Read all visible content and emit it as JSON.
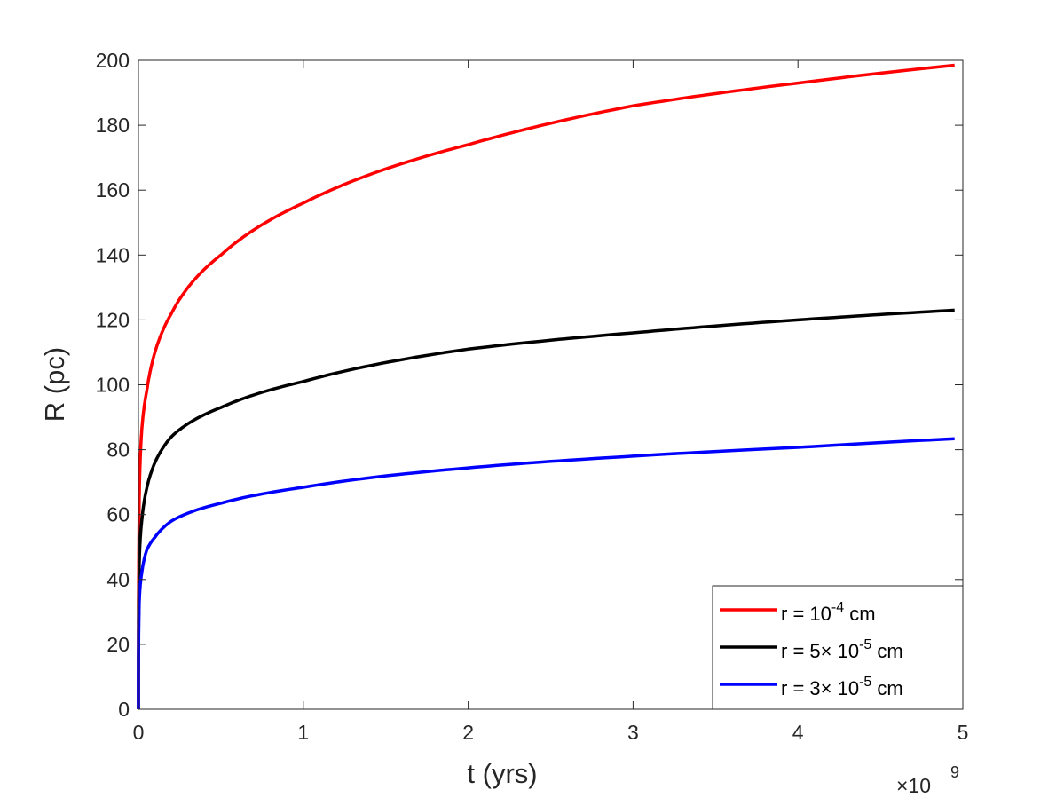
{
  "chart_data": {
    "type": "line",
    "title": "",
    "xlabel": "t (yrs)",
    "ylabel": "R (pc)",
    "x_multiplier": "×10^9",
    "xlim": [
      0,
      5
    ],
    "ylim": [
      0,
      200
    ],
    "xticks": [
      0,
      1,
      2,
      3,
      4,
      5
    ],
    "yticks": [
      0,
      20,
      40,
      60,
      80,
      100,
      120,
      140,
      160,
      180,
      200
    ],
    "grid": false,
    "legend_position": "lower right",
    "series": [
      {
        "name": "r = 10^-4 cm",
        "color": "#ff0000",
        "x": [
          0,
          0.005,
          0.02,
          0.05,
          0.1,
          0.2,
          0.5,
          1,
          2,
          3,
          4,
          4.95
        ],
        "y": [
          0,
          65,
          86,
          98,
          110,
          122,
          140,
          156,
          174,
          186,
          193,
          198.5
        ]
      },
      {
        "name": "r = 5× 10^-5 cm",
        "color": "#000000",
        "x": [
          0,
          0.005,
          0.02,
          0.05,
          0.1,
          0.2,
          0.5,
          1,
          2,
          3,
          4,
          4.95
        ],
        "y": [
          0,
          45,
          58,
          68,
          76,
          84,
          93,
          101,
          111,
          116,
          120,
          123
        ]
      },
      {
        "name": "r = 3× 10^-5 cm",
        "color": "#0000ff",
        "x": [
          0,
          0.005,
          0.02,
          0.05,
          0.1,
          0.2,
          0.5,
          1,
          2,
          3,
          4,
          4.95
        ],
        "y": [
          0,
          33,
          42,
          49,
          53,
          58,
          63.5,
          68.4,
          74.4,
          78,
          80.7,
          83.4
        ]
      }
    ]
  },
  "legend": {
    "items": [
      {
        "prefix": "r = 10",
        "exp": "-4",
        "suffix": " cm",
        "color": "#ff0000"
      },
      {
        "prefix": "r = 5× 10",
        "exp": "-5",
        "suffix": " cm",
        "color": "#000000"
      },
      {
        "prefix": "r = 3× 10",
        "exp": "-5",
        "suffix": " cm",
        "color": "#0000ff"
      }
    ]
  },
  "axes": {
    "xlabel": "t (yrs)",
    "ylabel": "R (pc)",
    "multiplier_base": "×10",
    "multiplier_exp": "9"
  }
}
